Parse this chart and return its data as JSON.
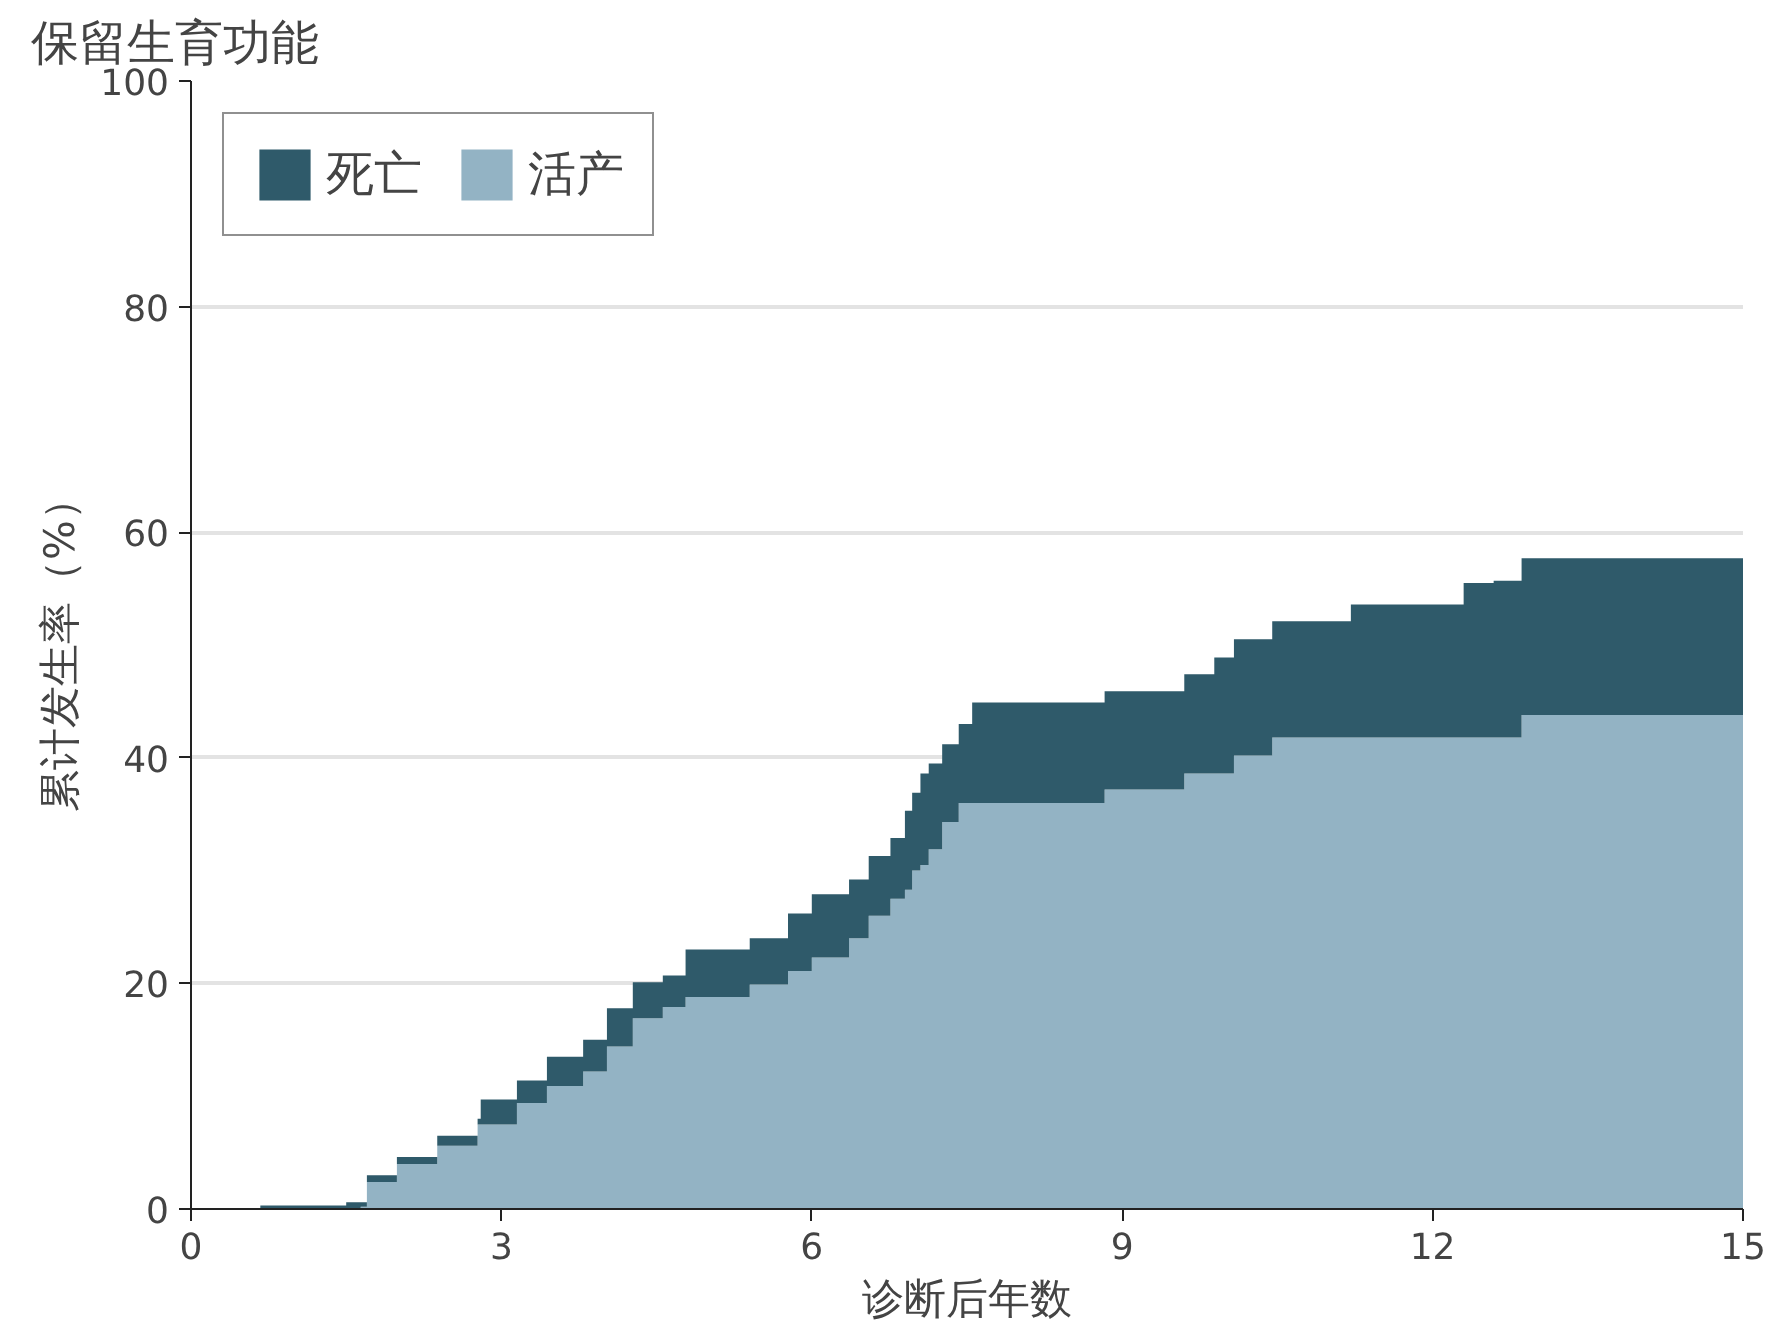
{
  "chart_data": {
    "type": "area",
    "title": "保留生育功能",
    "xlabel": "诊断后年数",
    "ylabel": "累计发生率（%）",
    "x": [
      0,
      0.67,
      1.5,
      1.64,
      1.7,
      1.99,
      2.38,
      2.77,
      2.8,
      3.15,
      3.44,
      3.79,
      4.02,
      4.27,
      4.56,
      4.78,
      5.4,
      5.77,
      6.0,
      6.36,
      6.55,
      6.76,
      6.9,
      6.97,
      7.05,
      7.13,
      7.26,
      7.42,
      7.55,
      8.83,
      9.6,
      9.89,
      10.08,
      10.45,
      11.21,
      12.3,
      12.59,
      12.86,
      15
    ],
    "stacked": true,
    "series": [
      {
        "name": "活产",
        "color": "#93b3c4",
        "values": [
          0,
          0,
          0,
          0.2,
          2.4,
          4.0,
          5.6,
          7.5,
          7.5,
          9.4,
          10.9,
          12.2,
          14.4,
          16.9,
          17.9,
          18.8,
          19.9,
          21.1,
          22.3,
          24.0,
          26.0,
          27.5,
          28.3,
          30.0,
          30.5,
          31.9,
          34.3,
          36.0,
          36.0,
          37.2,
          38.6,
          38.6,
          40.2,
          41.8,
          41.8,
          41.8,
          41.8,
          43.8,
          43.8
        ]
      },
      {
        "name": "死亡",
        "color": "#2f5a6a",
        "values": [
          0,
          0.3,
          0.6,
          0.4,
          0.6,
          0.6,
          0.9,
          0.5,
          2.2,
          2.0,
          2.6,
          2.8,
          3.4,
          3.2,
          2.8,
          4.2,
          4.1,
          5.1,
          5.6,
          5.2,
          5.3,
          5.4,
          7.0,
          6.9,
          8.1,
          7.6,
          6.9,
          7.0,
          8.9,
          8.7,
          8.8,
          10.3,
          10.3,
          10.3,
          11.8,
          13.7,
          13.9,
          13.9,
          13.9
        ]
      }
    ],
    "xlim": [
      0,
      15
    ],
    "xticks": [
      0,
      3,
      6,
      9,
      12,
      15
    ],
    "ylim": [
      0,
      100
    ],
    "yticks": [
      0,
      20,
      40,
      60,
      80,
      100
    ],
    "grid": "y",
    "legend": "top left"
  }
}
